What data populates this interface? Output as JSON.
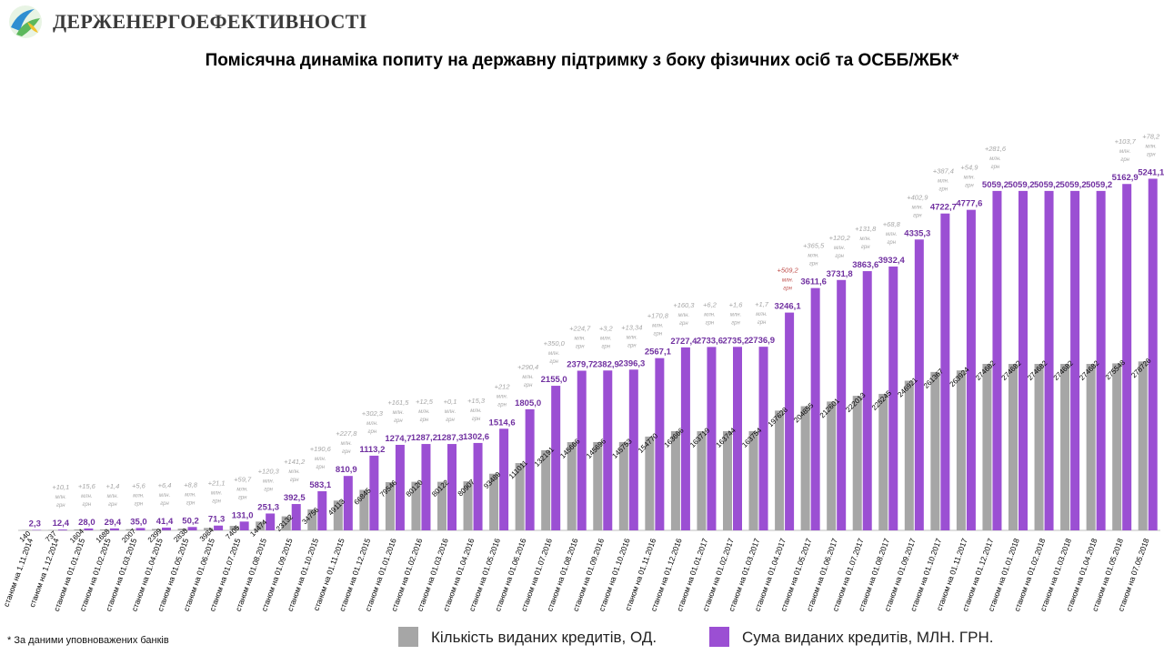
{
  "header": {
    "brand": "ДЕРЖЕНЕРГОЕФЕКТИВНОСТІ",
    "logo_icon": "energy-efficiency-logo-icon"
  },
  "title": "Помісячна динаміка попиту на державну підтримку з боку фізичних осіб та ОСББ/ЖБК*",
  "footnote": "* За даними уповноважених банків",
  "legend": {
    "count_label": "Кількість виданих кредитів, ОД.",
    "sum_label": "Сума виданих кредитів, МЛН. ГРН."
  },
  "colors": {
    "count": "#a6a6a6",
    "sum": "#9b4fd3",
    "sum_label": "#7030a0",
    "increment": "#a6a6a6",
    "increment_highlight": "#c0504d"
  },
  "increment_unit": [
    "млн.",
    "грн"
  ],
  "chart_data": {
    "type": "bar",
    "categories": [
      "станом на 1.11.2014",
      "станом на 1.12.2014",
      "станом на 01.01.2015",
      "станом на 01.02.2015",
      "станом на 01.03.2015",
      "станом на 01.04.2015",
      "станом на 01.05.2015",
      "станом на 01.06.2015",
      "станом на 01.07.2015",
      "станом на 01.08.2015",
      "станом на 01.09.2015",
      "станом на 01.10.2015",
      "станом на 01.11.2015",
      "станом на 01.12.2015",
      "станом на 01.01.2016",
      "станом на 01.02.2016",
      "станом на 01.03.2016",
      "станом на 01.04.2016",
      "станом на 01.05.2016",
      "станом на 01.06.2016",
      "станом на 01.07.2016",
      "станом на 01.08.2016",
      "станом на 01.09.2016",
      "станом на 01.10.2016",
      "станом на 01.11.2016",
      "станом на 01.12.2016",
      "станом на 01.01.2017",
      "станом на 01.02.2017",
      "станом на 01.03.2017",
      "станом на 01.04.2017",
      "станом на 01.05.2017",
      "станом на 01.06.2017",
      "станом на 01.07.2017",
      "станом на 01.08.2017",
      "станом на 01.09.2017",
      "станом на 01.10.2017",
      "станом на 01.11.2017",
      "станом на 01.12.2017",
      "станом на 01.01.2018",
      "станом на 01.02.2018",
      "станом на 01.03.2018",
      "станом на 01.04.2018",
      "станом на 01.05.2018",
      "станом на 07.05.2018"
    ],
    "series": [
      {
        "name": "Кількість виданих кредитів, ОД.",
        "values": [
          140,
          737,
          1604,
          1688,
          2007,
          2399,
          2838,
          3984,
          7405,
          14474,
          23132,
          34756,
          49113,
          66845,
          79546,
          80120,
          80122,
          80907,
          93489,
          111011,
          132191,
          145666,
          145696,
          145753,
          154770,
          163666,
          163719,
          163744,
          163754,
          197628,
          204855,
          212601,
          222013,
          225245,
          246921,
          261367,
          263924,
          274682,
          274682,
          274682,
          274682,
          274682,
          275548,
          278726
        ],
        "value_labels": [
          "140",
          "737",
          "1604",
          "1688",
          "2007",
          "2399",
          "2838",
          "3984",
          "7405",
          "14474",
          "23132",
          "34756",
          "49113",
          "66845",
          "79546",
          "80120",
          "80122",
          "80907",
          "93489",
          "111011",
          "132191",
          "145666",
          "145696",
          "145753",
          "154770",
          "163666",
          "163719",
          "163744",
          "163754",
          "197628",
          "204855",
          "212601",
          "222013",
          "225245",
          "246921",
          "261367",
          "263924",
          "274682",
          "274682",
          "274682",
          "274682",
          "274682",
          "275548",
          "278726"
        ]
      },
      {
        "name": "Сума виданих кредитів, МЛН. ГРН.",
        "values": [
          2.3,
          12.4,
          28.0,
          29.4,
          35.0,
          41.4,
          50.2,
          71.3,
          131.0,
          251.3,
          392.5,
          583.1,
          810.9,
          1113.2,
          1274.7,
          1287.2,
          1287.3,
          1302.6,
          1514.6,
          1805.0,
          2155.0,
          2379.7,
          2382.9,
          2396.3,
          2567.1,
          2727.4,
          2733.6,
          2735.2,
          2736.9,
          3246.1,
          3611.6,
          3731.8,
          3863.6,
          3932.4,
          4335.3,
          4722.7,
          4777.6,
          5059.2,
          5059.2,
          5059.2,
          5059.2,
          5059.2,
          5162.9,
          5241.1
        ],
        "value_labels": [
          "2,3",
          "12,4",
          "28,0",
          "29,4",
          "35,0",
          "41,4",
          "50,2",
          "71,3",
          "131,0",
          "251,3",
          "392,5",
          "583,1",
          "810,9",
          "1113,2",
          "1274,7",
          "1287,2",
          "1287,3",
          "1302,6",
          "1514,6",
          "1805,0",
          "2155,0",
          "2379,7",
          "2382,9",
          "2396,3",
          "2567,1",
          "2727,4",
          "2733,6",
          "2735,2",
          "2736,9",
          "3246,1",
          "3611,6",
          "3731,8",
          "3863,6",
          "3932,4",
          "4335,3",
          "4722,7",
          "4777,6",
          "5059,2",
          "5059,2",
          "5059,2",
          "5059,2",
          "5059,2",
          "5162,9",
          "5241,1"
        ]
      }
    ],
    "increments": [
      "",
      "+10,1",
      "+15,6",
      "+1,4",
      "+5,6",
      "+6,4",
      "+8,8",
      "+21,1",
      "+59,7",
      "+120,3",
      "+141,2",
      "+190,6",
      "+227,8",
      "+302,3",
      "+161,5",
      "+12,5",
      "+0,1",
      "+15,3",
      "+212",
      "+290,4",
      "+350,0",
      "+224,7",
      "+3,2",
      "+13,34",
      "+170,8",
      "+160,3",
      "+6,2",
      "+1,6",
      "+1,7",
      "+509,2",
      "+365,5",
      "+120,2",
      "+131,8",
      "+68,8",
      "+402,9",
      "+387,4",
      "+54,9",
      "+281,6",
      "",
      "",
      "",
      "",
      "+103,7",
      "+78,2"
    ],
    "increment_highlight_index": 29,
    "count_ylim": [
      0,
      620000
    ],
    "sum_ylim": [
      0,
      5600
    ],
    "grid": false,
    "legend_position": "bottom"
  }
}
